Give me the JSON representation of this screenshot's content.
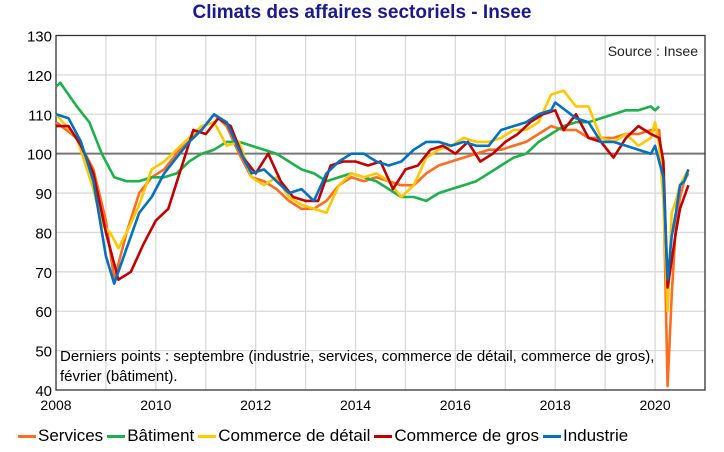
{
  "chart_data": {
    "type": "line",
    "title": "Climats des affaires sectoriels - Insee",
    "source": "Source : Insee",
    "note": "Derniers points : septembre (industrie, services, commerce de détail, commerce de gros), février (bâtiment).",
    "xlim": [
      "2008-01",
      "2020-12"
    ],
    "ylim": [
      40,
      130
    ],
    "x_ticks": [
      "2008",
      "2010",
      "2012",
      "2014",
      "2016",
      "2018",
      "2020"
    ],
    "y_ticks": [
      40,
      50,
      60,
      70,
      80,
      90,
      100,
      110,
      120,
      130
    ],
    "reference_line": 100,
    "grid": true,
    "legend_position": "bottom",
    "series": [
      {
        "name": "Services",
        "color": "#ff6d1f",
        "points": [
          [
            "2008-01",
            108
          ],
          [
            "2008-06",
            104
          ],
          [
            "2008-10",
            96
          ],
          [
            "2009-01",
            83
          ],
          [
            "2009-03",
            68
          ],
          [
            "2009-06",
            80
          ],
          [
            "2009-09",
            90
          ],
          [
            "2009-12",
            94
          ],
          [
            "2010-03",
            96
          ],
          [
            "2010-06",
            100
          ],
          [
            "2010-09",
            104
          ],
          [
            "2010-12",
            106
          ],
          [
            "2011-03",
            110
          ],
          [
            "2011-06",
            107
          ],
          [
            "2011-09",
            100
          ],
          [
            "2011-12",
            94
          ],
          [
            "2012-03",
            93
          ],
          [
            "2012-06",
            91
          ],
          [
            "2012-09",
            88
          ],
          [
            "2012-12",
            86
          ],
          [
            "2013-03",
            86
          ],
          [
            "2013-06",
            88
          ],
          [
            "2013-09",
            92
          ],
          [
            "2013-12",
            94
          ],
          [
            "2014-03",
            93
          ],
          [
            "2014-06",
            94
          ],
          [
            "2014-09",
            93
          ],
          [
            "2014-12",
            92
          ],
          [
            "2015-03",
            92
          ],
          [
            "2015-06",
            95
          ],
          [
            "2015-09",
            97
          ],
          [
            "2015-12",
            98
          ],
          [
            "2016-03",
            99
          ],
          [
            "2016-06",
            100
          ],
          [
            "2016-09",
            101
          ],
          [
            "2016-12",
            101
          ],
          [
            "2017-03",
            102
          ],
          [
            "2017-06",
            103
          ],
          [
            "2017-09",
            105
          ],
          [
            "2017-12",
            107
          ],
          [
            "2018-03",
            106
          ],
          [
            "2018-06",
            106
          ],
          [
            "2018-09",
            104
          ],
          [
            "2018-12",
            104
          ],
          [
            "2019-03",
            104
          ],
          [
            "2019-06",
            105
          ],
          [
            "2019-09",
            105
          ],
          [
            "2019-12",
            106
          ],
          [
            "2020-02",
            106
          ],
          [
            "2020-03",
            92
          ],
          [
            "2020-04",
            41
          ],
          [
            "2020-05",
            64
          ],
          [
            "2020-06",
            82
          ],
          [
            "2020-07",
            89
          ],
          [
            "2020-08",
            93
          ],
          [
            "2020-09",
            95
          ]
        ]
      },
      {
        "name": "Bâtiment",
        "color": "#1eb04c",
        "points": [
          [
            "2008-01",
            117
          ],
          [
            "2008-02",
            118
          ],
          [
            "2008-06",
            112
          ],
          [
            "2008-09",
            108
          ],
          [
            "2008-12",
            100
          ],
          [
            "2009-03",
            94
          ],
          [
            "2009-06",
            93
          ],
          [
            "2009-09",
            93
          ],
          [
            "2009-12",
            94
          ],
          [
            "2010-03",
            94
          ],
          [
            "2010-06",
            95
          ],
          [
            "2010-09",
            98
          ],
          [
            "2010-12",
            100
          ],
          [
            "2011-03",
            101
          ],
          [
            "2011-06",
            103
          ],
          [
            "2011-09",
            103
          ],
          [
            "2011-12",
            102
          ],
          [
            "2012-03",
            101
          ],
          [
            "2012-06",
            100
          ],
          [
            "2012-09",
            98
          ],
          [
            "2012-12",
            96
          ],
          [
            "2013-03",
            95
          ],
          [
            "2013-06",
            93
          ],
          [
            "2013-09",
            94
          ],
          [
            "2013-12",
            95
          ],
          [
            "2014-03",
            94
          ],
          [
            "2014-06",
            93
          ],
          [
            "2014-09",
            91
          ],
          [
            "2014-12",
            89
          ],
          [
            "2015-03",
            89
          ],
          [
            "2015-06",
            88
          ],
          [
            "2015-09",
            90
          ],
          [
            "2015-12",
            91
          ],
          [
            "2016-03",
            92
          ],
          [
            "2016-06",
            93
          ],
          [
            "2016-09",
            95
          ],
          [
            "2016-12",
            97
          ],
          [
            "2017-03",
            99
          ],
          [
            "2017-06",
            100
          ],
          [
            "2017-09",
            103
          ],
          [
            "2017-12",
            105
          ],
          [
            "2018-03",
            107
          ],
          [
            "2018-06",
            108
          ],
          [
            "2018-09",
            108
          ],
          [
            "2018-12",
            109
          ],
          [
            "2019-03",
            110
          ],
          [
            "2019-06",
            111
          ],
          [
            "2019-09",
            111
          ],
          [
            "2019-12",
            112
          ],
          [
            "2020-01",
            111
          ],
          [
            "2020-02",
            112
          ]
        ]
      },
      {
        "name": "Commerce de détail",
        "color": "#ffc800",
        "points": [
          [
            "2008-01",
            110
          ],
          [
            "2008-06",
            104
          ],
          [
            "2008-10",
            91
          ],
          [
            "2008-12",
            82
          ],
          [
            "2009-02",
            80
          ],
          [
            "2009-04",
            76
          ],
          [
            "2009-06",
            80
          ],
          [
            "2009-09",
            87
          ],
          [
            "2009-12",
            96
          ],
          [
            "2010-03",
            98
          ],
          [
            "2010-06",
            101
          ],
          [
            "2010-09",
            104
          ],
          [
            "2010-12",
            107
          ],
          [
            "2011-03",
            108
          ],
          [
            "2011-06",
            102
          ],
          [
            "2011-09",
            103
          ],
          [
            "2011-12",
            94
          ],
          [
            "2012-03",
            92
          ],
          [
            "2012-06",
            94
          ],
          [
            "2012-09",
            89
          ],
          [
            "2012-12",
            87
          ],
          [
            "2013-03",
            86
          ],
          [
            "2013-06",
            85
          ],
          [
            "2013-09",
            92
          ],
          [
            "2013-12",
            95
          ],
          [
            "2014-03",
            94
          ],
          [
            "2014-06",
            95
          ],
          [
            "2014-09",
            93
          ],
          [
            "2014-12",
            89
          ],
          [
            "2015-03",
            92
          ],
          [
            "2015-06",
            99
          ],
          [
            "2015-09",
            101
          ],
          [
            "2015-12",
            102
          ],
          [
            "2016-03",
            104
          ],
          [
            "2016-06",
            103
          ],
          [
            "2016-09",
            103
          ],
          [
            "2016-12",
            104
          ],
          [
            "2017-03",
            106
          ],
          [
            "2017-06",
            106
          ],
          [
            "2017-09",
            108
          ],
          [
            "2017-12",
            115
          ],
          [
            "2018-03",
            116
          ],
          [
            "2018-06",
            112
          ],
          [
            "2018-09",
            112
          ],
          [
            "2018-12",
            104
          ],
          [
            "2019-03",
            103
          ],
          [
            "2019-06",
            105
          ],
          [
            "2019-09",
            102
          ],
          [
            "2019-12",
            104
          ],
          [
            "2020-01",
            108
          ],
          [
            "2020-02",
            102
          ],
          [
            "2020-03",
            88
          ],
          [
            "2020-04",
            60
          ],
          [
            "2020-05",
            85
          ],
          [
            "2020-06",
            88
          ],
          [
            "2020-07",
            92
          ],
          [
            "2020-08",
            94
          ],
          [
            "2020-09",
            96
          ]
        ]
      },
      {
        "name": "Commerce de gros",
        "color": "#c00000",
        "points": [
          [
            "2008-01",
            107
          ],
          [
            "2008-04",
            107
          ],
          [
            "2008-07",
            102
          ],
          [
            "2008-10",
            95
          ],
          [
            "2009-01",
            80
          ],
          [
            "2009-04",
            68
          ],
          [
            "2009-07",
            70
          ],
          [
            "2009-10",
            77
          ],
          [
            "2010-01",
            83
          ],
          [
            "2010-04",
            86
          ],
          [
            "2010-07",
            96
          ],
          [
            "2010-10",
            106
          ],
          [
            "2011-01",
            105
          ],
          [
            "2011-04",
            109
          ],
          [
            "2011-07",
            107
          ],
          [
            "2011-10",
            99
          ],
          [
            "2012-01",
            95
          ],
          [
            "2012-04",
            100
          ],
          [
            "2012-07",
            93
          ],
          [
            "2012-10",
            89
          ],
          [
            "2013-01",
            88
          ],
          [
            "2013-04",
            88
          ],
          [
            "2013-07",
            97
          ],
          [
            "2013-10",
            98
          ],
          [
            "2014-01",
            98
          ],
          [
            "2014-04",
            97
          ],
          [
            "2014-07",
            98
          ],
          [
            "2014-10",
            91
          ],
          [
            "2015-01",
            96
          ],
          [
            "2015-04",
            97
          ],
          [
            "2015-07",
            101
          ],
          [
            "2015-10",
            102
          ],
          [
            "2016-01",
            100
          ],
          [
            "2016-04",
            103
          ],
          [
            "2016-07",
            98
          ],
          [
            "2016-10",
            100
          ],
          [
            "2017-01",
            103
          ],
          [
            "2017-04",
            105
          ],
          [
            "2017-07",
            108
          ],
          [
            "2017-10",
            110
          ],
          [
            "2018-01",
            111
          ],
          [
            "2018-03",
            106
          ],
          [
            "2018-06",
            110
          ],
          [
            "2018-09",
            104
          ],
          [
            "2018-12",
            103
          ],
          [
            "2019-03",
            99
          ],
          [
            "2019-06",
            104
          ],
          [
            "2019-09",
            107
          ],
          [
            "2019-12",
            105
          ],
          [
            "2020-02",
            104
          ],
          [
            "2020-03",
            98
          ],
          [
            "2020-04",
            66
          ],
          [
            "2020-05",
            73
          ],
          [
            "2020-06",
            80
          ],
          [
            "2020-07",
            86
          ],
          [
            "2020-08",
            89
          ],
          [
            "2020-09",
            92
          ]
        ]
      },
      {
        "name": "Industrie",
        "color": "#0070c0",
        "points": [
          [
            "2008-01",
            110
          ],
          [
            "2008-04",
            109
          ],
          [
            "2008-07",
            103
          ],
          [
            "2008-10",
            93
          ],
          [
            "2009-01",
            74
          ],
          [
            "2009-03",
            67
          ],
          [
            "2009-06",
            76
          ],
          [
            "2009-09",
            85
          ],
          [
            "2009-12",
            89
          ],
          [
            "2010-03",
            95
          ],
          [
            "2010-06",
            99
          ],
          [
            "2010-09",
            103
          ],
          [
            "2010-12",
            106
          ],
          [
            "2011-03",
            110
          ],
          [
            "2011-06",
            108
          ],
          [
            "2011-09",
            101
          ],
          [
            "2011-12",
            95
          ],
          [
            "2012-03",
            96
          ],
          [
            "2012-06",
            93
          ],
          [
            "2012-09",
            90
          ],
          [
            "2012-12",
            91
          ],
          [
            "2013-03",
            88
          ],
          [
            "2013-06",
            95
          ],
          [
            "2013-09",
            98
          ],
          [
            "2013-12",
            100
          ],
          [
            "2014-03",
            100
          ],
          [
            "2014-06",
            98
          ],
          [
            "2014-09",
            97
          ],
          [
            "2014-12",
            98
          ],
          [
            "2015-03",
            101
          ],
          [
            "2015-06",
            103
          ],
          [
            "2015-09",
            103
          ],
          [
            "2015-12",
            102
          ],
          [
            "2016-03",
            103
          ],
          [
            "2016-06",
            102
          ],
          [
            "2016-09",
            102
          ],
          [
            "2016-12",
            106
          ],
          [
            "2017-03",
            107
          ],
          [
            "2017-06",
            108
          ],
          [
            "2017-09",
            110
          ],
          [
            "2017-12",
            111
          ],
          [
            "2018-01",
            113
          ],
          [
            "2018-06",
            109
          ],
          [
            "2018-09",
            108
          ],
          [
            "2018-12",
            103
          ],
          [
            "2019-03",
            103
          ],
          [
            "2019-06",
            102
          ],
          [
            "2019-09",
            101
          ],
          [
            "2019-12",
            100
          ],
          [
            "2020-01",
            102
          ],
          [
            "2020-02",
            98
          ],
          [
            "2020-03",
            94
          ],
          [
            "2020-04",
            68
          ],
          [
            "2020-05",
            79
          ],
          [
            "2020-06",
            85
          ],
          [
            "2020-07",
            92
          ],
          [
            "2020-08",
            93
          ],
          [
            "2020-09",
            96
          ]
        ]
      }
    ]
  }
}
